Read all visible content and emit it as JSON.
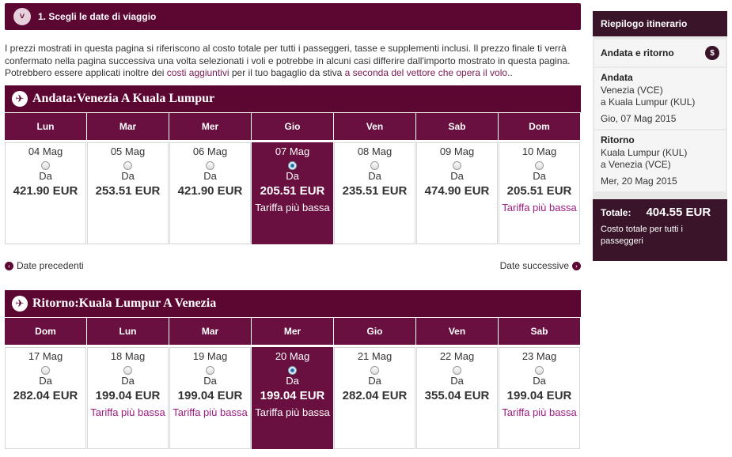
{
  "step": {
    "title": "1. Scegli le date di viaggio",
    "toggle": "˅"
  },
  "notice": {
    "text1": "I prezzi mostrati in questa pagina si riferiscono al costo totale per tutti i passeggeri, tasse e supplementi inclusi. Il prezzo finale ti verrà confermato nella pagina successiva una volta selezionati i voli e potrebbe in alcuni casi differire dall'importo mostrato in questa pagina. Potrebbero essere applicati inoltre dei ",
    "link1": "costi aggiuntivi",
    "text2": " per il tuo bagaglio da stiva ",
    "link2": "a seconda del vettore che opera il volo",
    "text3": ".."
  },
  "outbound": {
    "title": "Andata:Venezia A Kuala Lumpur",
    "days": [
      {
        "day": "Lun",
        "date": "04 Mag",
        "da": "Da",
        "price": "421.90 EUR",
        "tag": "",
        "selected": false
      },
      {
        "day": "Mar",
        "date": "05 Mag",
        "da": "Da",
        "price": "253.51 EUR",
        "tag": "",
        "selected": false
      },
      {
        "day": "Mer",
        "date": "06 Mag",
        "da": "Da",
        "price": "421.90 EUR",
        "tag": "",
        "selected": false
      },
      {
        "day": "Gio",
        "date": "07 Mag",
        "da": "Da",
        "price": "205.51 EUR",
        "tag": "Tariffa più bassa",
        "selected": true
      },
      {
        "day": "Ven",
        "date": "08 Mag",
        "da": "Da",
        "price": "235.51 EUR",
        "tag": "",
        "selected": false
      },
      {
        "day": "Sab",
        "date": "09 Mag",
        "da": "Da",
        "price": "474.90 EUR",
        "tag": "",
        "selected": false
      },
      {
        "day": "Dom",
        "date": "10 Mag",
        "da": "Da",
        "price": "205.51 EUR",
        "tag": "Tariffa più bassa",
        "selected": false
      }
    ]
  },
  "nav": {
    "prev": "Date precedenti",
    "next": "Date successive"
  },
  "return": {
    "title": "Ritorno:Kuala Lumpur A Venezia",
    "days": [
      {
        "day": "Dom",
        "date": "17 Mag",
        "da": "Da",
        "price": "282.04 EUR",
        "tag": "",
        "selected": false
      },
      {
        "day": "Lun",
        "date": "18 Mag",
        "da": "Da",
        "price": "199.04 EUR",
        "tag": "Tariffa più bassa",
        "selected": false
      },
      {
        "day": "Mar",
        "date": "19 Mag",
        "da": "Da",
        "price": "199.04 EUR",
        "tag": "Tariffa più bassa",
        "selected": false
      },
      {
        "day": "Mer",
        "date": "20 Mag",
        "da": "Da",
        "price": "199.04 EUR",
        "tag": "Tariffa più bassa",
        "selected": true
      },
      {
        "day": "Gio",
        "date": "21 Mag",
        "da": "Da",
        "price": "282.04 EUR",
        "tag": "",
        "selected": false
      },
      {
        "day": "Ven",
        "date": "22 Mag",
        "da": "Da",
        "price": "355.04 EUR",
        "tag": "",
        "selected": false
      },
      {
        "day": "Sab",
        "date": "23 Mag",
        "da": "Da",
        "price": "199.04 EUR",
        "tag": "Tariffa più bassa",
        "selected": false
      }
    ]
  },
  "summary": {
    "title": "Riepilogo itinerario",
    "trip_type": "Andata e ritorno",
    "outbound_label": "Andata",
    "outbound_from": "Venezia (VCE)",
    "outbound_to": "a Kuala Lumpur (KUL)",
    "outbound_date": "Gio, 07 Mag 2015",
    "return_label": "Ritorno",
    "return_from": "Kuala Lumpur (KUL)",
    "return_to": "a Venezia (VCE)",
    "return_date": "Mer, 20 Mag 2015",
    "total_label": "Totale:",
    "total_value": "404.55  EUR",
    "total_note": "Costo totale per tutti i passeggeri"
  },
  "colors": {
    "brand": "#5c0632",
    "day_header": "#6a1040",
    "summary_dark": "#3a1428",
    "tag_text": "#9b1b7f"
  },
  "icons": {
    "step_toggle": "chevron-down-icon",
    "plane": "plane-icon",
    "swap": "swap-icon",
    "prev": "chevron-left-icon",
    "next": "chevron-right-icon"
  }
}
